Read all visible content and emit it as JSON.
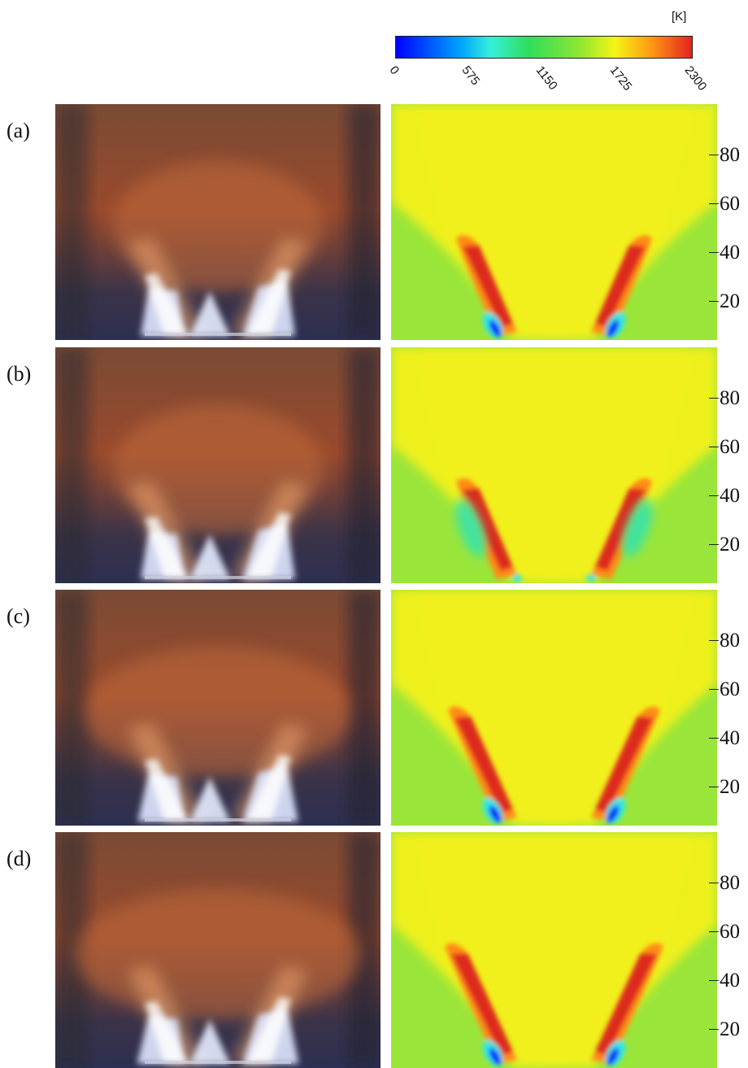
{
  "colorbar": {
    "unit": "[K]",
    "ticks": [
      "0",
      "575",
      "1150",
      "1725",
      "2300"
    ],
    "colors": [
      "#0000ff",
      "#00a5ff",
      "#35f0d8",
      "#2fdd5a",
      "#8ee632",
      "#f5f516",
      "#ff9a14",
      "#e3231f"
    ]
  },
  "panels": [
    {
      "label": "(a)",
      "y_ticks": [
        "80",
        "60",
        "40",
        "20"
      ]
    },
    {
      "label": "(b)",
      "y_ticks": [
        "80",
        "60",
        "40",
        "20"
      ]
    },
    {
      "label": "(c)",
      "y_ticks": [
        "80",
        "60",
        "40",
        "20"
      ]
    },
    {
      "label": "(d)",
      "y_ticks": [
        "80",
        "60",
        "40",
        "20"
      ]
    }
  ]
}
